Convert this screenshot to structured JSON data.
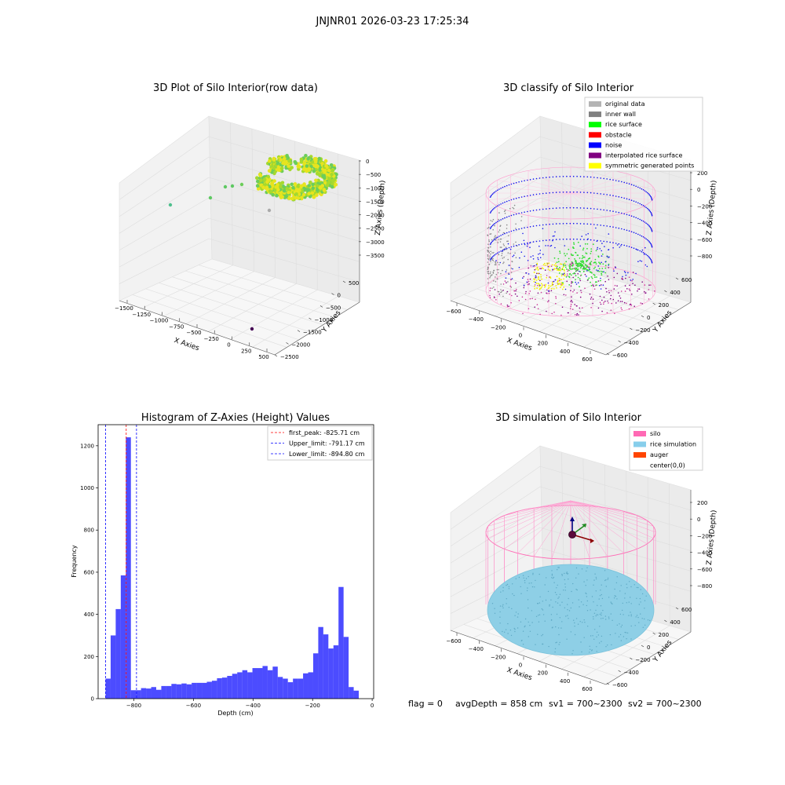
{
  "suptitle": "JNJNR01 2026-03-23 17:25:34",
  "panel_titles": {
    "raw": "3D Plot of Silo Interior(row data)",
    "classify": "3D classify of Silo Interior",
    "hist": "Histogram of Z-Axies (Height) Values",
    "sim": "3D simulation of Silo Interior"
  },
  "axis_labels": {
    "x": "X Axies",
    "y": "Y Axies",
    "z": "Z Axies (Depth)",
    "hist_x": "Depth (cm)",
    "hist_y": "Frequency"
  },
  "raw_ticks": {
    "x": [
      "−1500",
      "−1250",
      "−1000",
      "−750",
      "−500",
      "−250",
      "0",
      "250",
      "500"
    ],
    "y": [
      "500",
      "0",
      "−500",
      "−1000",
      "−1500",
      "−2000",
      "−2500"
    ],
    "z": [
      "0",
      "−500",
      "−1000",
      "−1500",
      "−2000",
      "−2500",
      "−3000",
      "−3500"
    ]
  },
  "classify_ticks": {
    "x": [
      "−600",
      "−400",
      "−200",
      "0",
      "200",
      "400",
      "600"
    ],
    "y": [
      "600",
      "400",
      "200",
      "0",
      "−200",
      "−400",
      "−600"
    ],
    "z": [
      "200",
      "0",
      "−200",
      "−400",
      "−600",
      "−800"
    ]
  },
  "classify_legend": [
    {
      "label": "original data",
      "color": "#b4b4b4"
    },
    {
      "label": "inner wall",
      "color": "#808080"
    },
    {
      "label": "rice surface",
      "color": "#00ff00"
    },
    {
      "label": "obstacle",
      "color": "#ff0000"
    },
    {
      "label": "noise",
      "color": "#0000ff"
    },
    {
      "label": "interpolated rice surface",
      "color": "#800080"
    },
    {
      "label": "symmetric generated points",
      "color": "#ffff00"
    }
  ],
  "sim_legend": [
    {
      "label": "silo",
      "color": "#ff69b4"
    },
    {
      "label": "rice simulation",
      "color": "#87ceeb"
    },
    {
      "label": "auger",
      "color": "#ff4500"
    },
    {
      "label": "center(0,0)",
      "color": "#ffffff"
    }
  ],
  "hist_legend": [
    {
      "label": "first_peak: -825.71 cm",
      "color": "#ff0000"
    },
    {
      "label": "Upper_limit: -791.17 cm",
      "color": "#0000ff"
    },
    {
      "label": "Lower_limit: -894.80 cm",
      "color": "#0000ff"
    }
  ],
  "status_line": {
    "flag": "flag = 0",
    "avg": "avgDepth = 858 cm",
    "sv1": "sv1 = 700~2300",
    "sv2": "sv2 = 700~2300"
  },
  "chart_data": {
    "type": "bar",
    "title": "Histogram of Z-Axies (Height) Values",
    "xlabel": "Depth (cm)",
    "ylabel": "Frequency",
    "xlim": [
      -920,
      5
    ],
    "ylim": [
      0,
      1300
    ],
    "xticks": [
      -800,
      -600,
      -400,
      -200,
      0
    ],
    "xtick_labels": [
      "−800",
      "−600",
      "−400",
      "−200",
      "0"
    ],
    "yticks": [
      0,
      200,
      400,
      600,
      800,
      1000,
      1200
    ],
    "bar_color": "#0000ff",
    "bins": [
      {
        "x0": -895,
        "x1": -878,
        "count": 95
      },
      {
        "x0": -878,
        "x1": -861,
        "count": 300
      },
      {
        "x0": -861,
        "x1": -844,
        "count": 425
      },
      {
        "x0": -844,
        "x1": -827,
        "count": 585
      },
      {
        "x0": -827,
        "x1": -810,
        "count": 1240
      },
      {
        "x0": -810,
        "x1": -793,
        "count": 40
      },
      {
        "x0": -793,
        "x1": -776,
        "count": 40
      },
      {
        "x0": -776,
        "x1": -759,
        "count": 50
      },
      {
        "x0": -759,
        "x1": -742,
        "count": 48
      },
      {
        "x0": -742,
        "x1": -725,
        "count": 55
      },
      {
        "x0": -725,
        "x1": -708,
        "count": 42
      },
      {
        "x0": -708,
        "x1": -691,
        "count": 60
      },
      {
        "x0": -691,
        "x1": -674,
        "count": 60
      },
      {
        "x0": -674,
        "x1": -657,
        "count": 70
      },
      {
        "x0": -657,
        "x1": -640,
        "count": 68
      },
      {
        "x0": -640,
        "x1": -623,
        "count": 72
      },
      {
        "x0": -623,
        "x1": -606,
        "count": 68
      },
      {
        "x0": -606,
        "x1": -589,
        "count": 75
      },
      {
        "x0": -589,
        "x1": -572,
        "count": 75
      },
      {
        "x0": -572,
        "x1": -555,
        "count": 75
      },
      {
        "x0": -555,
        "x1": -538,
        "count": 80
      },
      {
        "x0": -538,
        "x1": -521,
        "count": 85
      },
      {
        "x0": -521,
        "x1": -504,
        "count": 97
      },
      {
        "x0": -504,
        "x1": -487,
        "count": 100
      },
      {
        "x0": -487,
        "x1": -470,
        "count": 108
      },
      {
        "x0": -470,
        "x1": -453,
        "count": 118
      },
      {
        "x0": -453,
        "x1": -436,
        "count": 125
      },
      {
        "x0": -436,
        "x1": -419,
        "count": 135
      },
      {
        "x0": -419,
        "x1": -402,
        "count": 125
      },
      {
        "x0": -402,
        "x1": -385,
        "count": 145
      },
      {
        "x0": -385,
        "x1": -368,
        "count": 145
      },
      {
        "x0": -368,
        "x1": -351,
        "count": 155
      },
      {
        "x0": -351,
        "x1": -334,
        "count": 135
      },
      {
        "x0": -334,
        "x1": -317,
        "count": 152
      },
      {
        "x0": -317,
        "x1": -300,
        "count": 103
      },
      {
        "x0": -300,
        "x1": -283,
        "count": 95
      },
      {
        "x0": -283,
        "x1": -266,
        "count": 78
      },
      {
        "x0": -266,
        "x1": -249,
        "count": 95
      },
      {
        "x0": -249,
        "x1": -232,
        "count": 95
      },
      {
        "x0": -232,
        "x1": -215,
        "count": 120
      },
      {
        "x0": -215,
        "x1": -198,
        "count": 125
      },
      {
        "x0": -198,
        "x1": -181,
        "count": 215
      },
      {
        "x0": -181,
        "x1": -164,
        "count": 340
      },
      {
        "x0": -164,
        "x1": -147,
        "count": 305
      },
      {
        "x0": -147,
        "x1": -130,
        "count": 238
      },
      {
        "x0": -130,
        "x1": -113,
        "count": 253
      },
      {
        "x0": -113,
        "x1": -96,
        "count": 530
      },
      {
        "x0": -96,
        "x1": -79,
        "count": 293
      },
      {
        "x0": -79,
        "x1": -62,
        "count": 55
      },
      {
        "x0": -62,
        "x1": -45,
        "count": 38
      }
    ],
    "vlines": [
      {
        "x": -825.71,
        "color": "#ff0000"
      },
      {
        "x": -791.17,
        "color": "#0000ff"
      },
      {
        "x": -894.8,
        "color": "#0000ff"
      }
    ]
  }
}
